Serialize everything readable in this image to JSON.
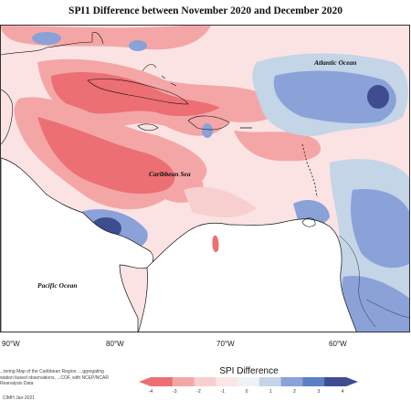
{
  "title": "SPI1 Difference between November 2020 and December 2020",
  "map": {
    "region": "Caribbean Region",
    "ocean_labels": {
      "atlantic": "Atlantic Ocean",
      "caribbean": "Caribbean Sea",
      "pacific": "Pacific Ocean"
    },
    "longitude_labels": [
      "90°W",
      "80°W",
      "70°W",
      "60°W"
    ]
  },
  "legend": {
    "title": "SPI Difference",
    "ticks": [
      "-4",
      "-3",
      "-2",
      "-1",
      "0",
      "1",
      "2",
      "3",
      "4"
    ],
    "colors": [
      "#ec6f73",
      "#f4a6a6",
      "#f8cfcf",
      "#fbe5e5",
      "#eef2f7",
      "#c3d5e6",
      "#8aa2d8",
      "#5c7fc6",
      "#3e4d8f"
    ]
  },
  "footer": {
    "note": "...toring Map of the Caribbean Region. ...ggregating station based observations, ...COF, with NCEP/NCAR Reanalysis Data",
    "copyright": "CIMH Jan-2021"
  }
}
